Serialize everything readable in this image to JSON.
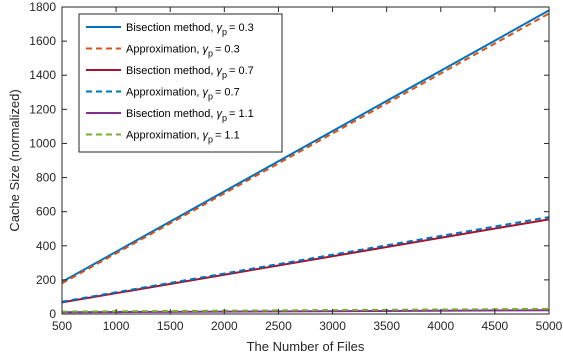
{
  "chart_data": {
    "type": "line",
    "xlabel": "The Number of Files",
    "ylabel": "Cache Size (normalized)",
    "xlim": [
      500,
      5000
    ],
    "ylim": [
      0,
      1800
    ],
    "xticks": [
      500,
      1000,
      1500,
      2000,
      2500,
      3000,
      3500,
      4000,
      4500,
      5000
    ],
    "yticks": [
      0,
      200,
      400,
      600,
      800,
      1000,
      1200,
      1400,
      1600,
      1800
    ],
    "legend_position": "top-left",
    "grid": false,
    "series": [
      {
        "name": "Bisection method",
        "gamma_symbol": "γ",
        "gamma_sub": "p",
        "gamma_value": "= 0.3",
        "color": "#0072BD",
        "style": "solid",
        "x": [
          500,
          5000
        ],
        "y": [
          188,
          1780
        ]
      },
      {
        "name": "Approximation",
        "gamma_symbol": "γ",
        "gamma_sub": "p",
        "gamma_value": "= 0.3",
        "color": "#D95319",
        "style": "dashed",
        "x": [
          500,
          5000
        ],
        "y": [
          180,
          1762
        ]
      },
      {
        "name": "Bisection method",
        "gamma_symbol": "γ",
        "gamma_sub": "p",
        "gamma_value": "= 0.7",
        "color": "#A2142F",
        "style": "solid",
        "x": [
          500,
          5000
        ],
        "y": [
          68,
          555
        ]
      },
      {
        "name": "Approximation",
        "gamma_symbol": "γ",
        "gamma_sub": "p",
        "gamma_value": "= 0.7",
        "color": "#0072BD",
        "style": "dashed",
        "x": [
          500,
          5000
        ],
        "y": [
          72,
          568
        ]
      },
      {
        "name": "Bisection method",
        "gamma_symbol": "γ",
        "gamma_sub": "p",
        "gamma_value": "= 1.1",
        "color": "#7E2F8E",
        "style": "solid",
        "x": [
          500,
          5000
        ],
        "y": [
          10,
          22
        ]
      },
      {
        "name": "Approximation",
        "gamma_symbol": "γ",
        "gamma_sub": "p",
        "gamma_value": "= 1.1",
        "color": "#77AC30",
        "style": "dashed",
        "x": [
          500,
          5000
        ],
        "y": [
          14,
          30
        ]
      }
    ]
  }
}
